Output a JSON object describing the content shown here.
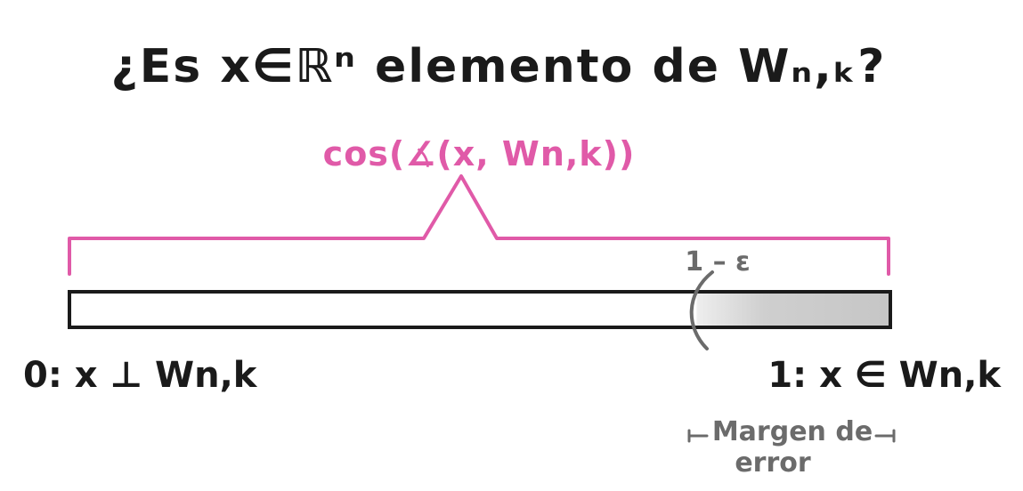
{
  "diagram": {
    "title": "¿Es x∈ℝⁿ elemento de Wₙ,ₖ?",
    "brace_label": "cos(∡(x, Wn,k))",
    "threshold_label": "1 – ε",
    "left_label": "0: x ⊥ Wn,k",
    "right_label": "1: x ∈ Wn,k",
    "margin_label_line1": "Margen de",
    "margin_label_line2": "error",
    "threshold_fraction": 0.764
  },
  "colors": {
    "ink": "#1a1a1a",
    "accent": "#e05aa8",
    "gray_ink": "#6b6b6b",
    "bar_fill": "#ffffff",
    "margin_fill": "#c9c9c9"
  }
}
